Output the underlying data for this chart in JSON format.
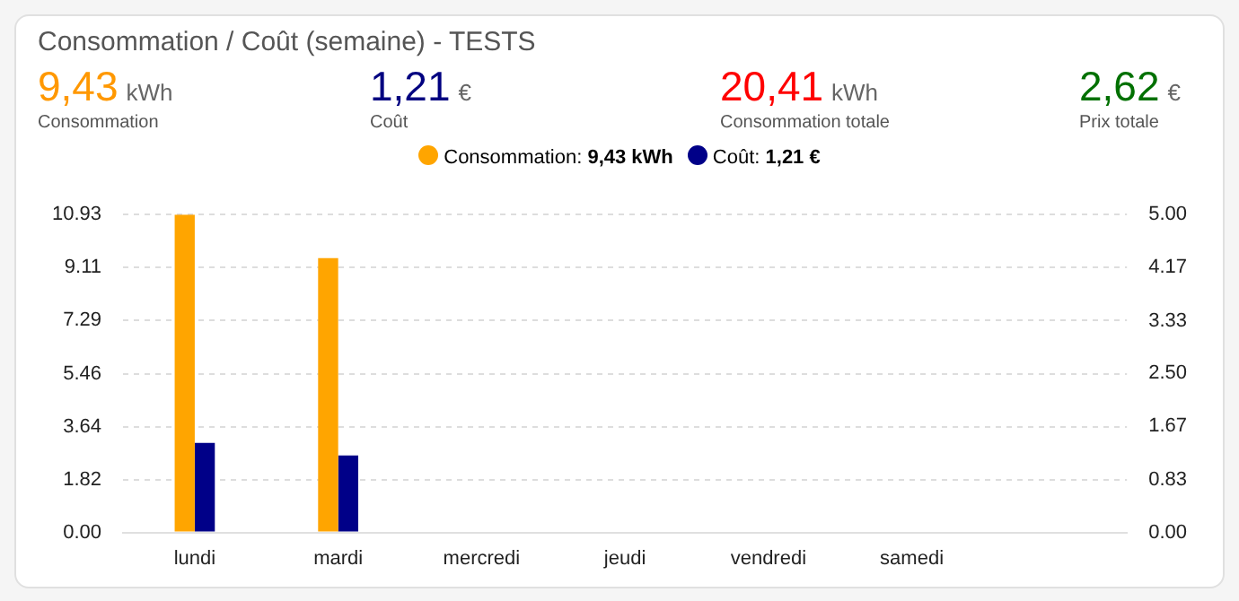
{
  "chart_data": {
    "type": "bar",
    "title": "Consommation / Coût (semaine) - TESTS",
    "annotations": [
      "9,43 kWh",
      "Consommation",
      "1,21 €",
      "Coût",
      "20,41 kWh",
      "Consommation totale",
      "2,62 €",
      "Prix totale"
    ],
    "categories": [
      "lundi",
      "mardi",
      "mercredi",
      "jeudi",
      "vendredi",
      "samedi",
      null
    ],
    "series": [
      {
        "name": "Consommation: 9,43 kWh",
        "color": "#ffa500",
        "values": [
          10.93,
          9.43,
          null,
          null,
          null,
          null,
          null
        ]
      },
      {
        "name": "Coût: 1,21 €",
        "color": "#000088",
        "axis": "y2",
        "values": [
          1.41,
          1.21,
          null,
          null,
          null,
          null,
          null
        ]
      }
    ],
    "ylim": [
      0,
      10.93
    ],
    "yticks": [
      {
        "value": 0,
        "label": "0.00"
      },
      1.82,
      3.64,
      5.46,
      7.29,
      9.11,
      10.93
    ],
    "y2lim": [
      0,
      5
    ],
    "y2ticks": [
      {
        "value": 0,
        "label": "0.00"
      },
      0.83,
      1.67,
      {
        "value": 2.5,
        "label": "2.50"
      },
      3.33,
      4.17,
      {
        "value": 5,
        "label": "5.00"
      }
    ],
    "grid": "y",
    "legend": "top"
  }
}
